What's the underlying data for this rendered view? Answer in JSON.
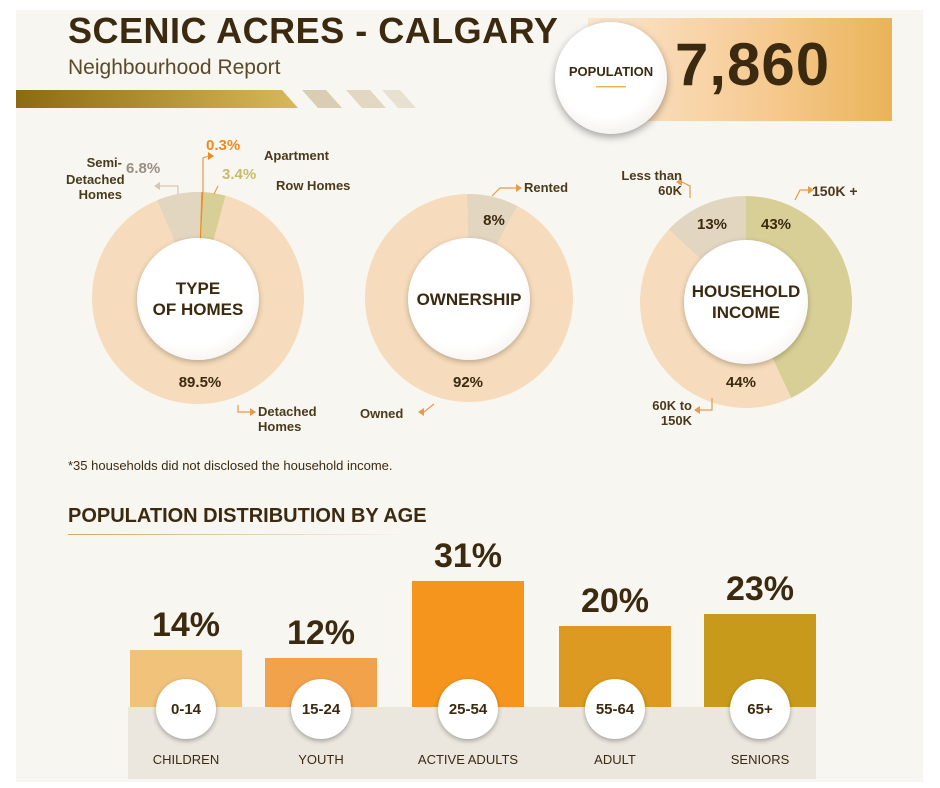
{
  "header": {
    "title": "SCENIC ACRES - CALGARY",
    "subtitle": "Neighbourhood Report",
    "population_label": "POPULATION",
    "population_value": "7,860"
  },
  "colors": {
    "beige": "#f6dcbc",
    "stone": "#e3d6c0",
    "orange": "#f08a1c",
    "olive": "#d8cf96",
    "dark_text": "#3b2a0f"
  },
  "footnote": "*35 households did not disclosed the household income.",
  "chart_data": [
    {
      "type": "pie",
      "title": "TYPE OF HOMES",
      "slices": [
        {
          "label": "Detached Homes",
          "value": 89.5,
          "display": "89.5%",
          "color": "#f6dcbc"
        },
        {
          "label": "Semi-Detached Homes",
          "value": 6.8,
          "display": "6.8%",
          "color": "#e3d6c0"
        },
        {
          "label": "Apartment",
          "value": 0.3,
          "display": "0.3%",
          "color": "#f08a1c"
        },
        {
          "label": "Row Homes",
          "value": 3.4,
          "display": "3.4%",
          "color": "#d8cf96"
        }
      ]
    },
    {
      "type": "pie",
      "title": "OWNERSHIP",
      "slices": [
        {
          "label": "Owned",
          "value": 92,
          "display": "92%",
          "color": "#f6dcbc"
        },
        {
          "label": "Rented",
          "value": 8,
          "display": "8%",
          "color": "#e3d6c0"
        }
      ]
    },
    {
      "type": "pie",
      "title": "HOUSEHOLD INCOME",
      "slices": [
        {
          "label": "150K +",
          "value": 43,
          "display": "43%",
          "color": "#d8cf96"
        },
        {
          "label": "60K to 150K",
          "value": 44,
          "display": "44%",
          "color": "#f6dcbc"
        },
        {
          "label": "Less than 60K",
          "value": 13,
          "display": "13%",
          "color": "#e3d6c0"
        }
      ]
    },
    {
      "type": "bar",
      "title": "POPULATION DISTRIBUTION BY AGE",
      "categories": [
        "0-14",
        "15-24",
        "25-54",
        "55-64",
        "65+"
      ],
      "category_names": [
        "CHILDREN",
        "YOUTH",
        "ACTIVE ADULTS",
        "ADULT",
        "SENIORS"
      ],
      "values": [
        14,
        12,
        31,
        20,
        23
      ],
      "display": [
        "14%",
        "12%",
        "31%",
        "20%",
        "23%"
      ],
      "colors": [
        "#f0c27a",
        "#f3a24c",
        "#f5951e",
        "#dd9a22",
        "#c89a1c"
      ],
      "ylim": [
        0,
        31
      ]
    }
  ],
  "labels": {
    "type_of_homes": {
      "semi_1": "Semi-",
      "semi_2": "Detached",
      "semi_3": "Homes",
      "apartment": "Apartment",
      "row_homes": "Row Homes",
      "detached_1": "Detached",
      "detached_2": "Homes"
    },
    "ownership": {
      "rented": "Rented",
      "owned": "Owned"
    },
    "income": {
      "less_1": "Less than",
      "less_2": "60K",
      "high": "150K +",
      "mid_1": "60K to",
      "mid_2": "150K"
    },
    "centers": {
      "homes_1": "TYPE",
      "homes_2": "OF HOMES",
      "ownership": "OWNERSHIP",
      "income_1": "HOUSEHOLD",
      "income_2": "INCOME"
    }
  }
}
